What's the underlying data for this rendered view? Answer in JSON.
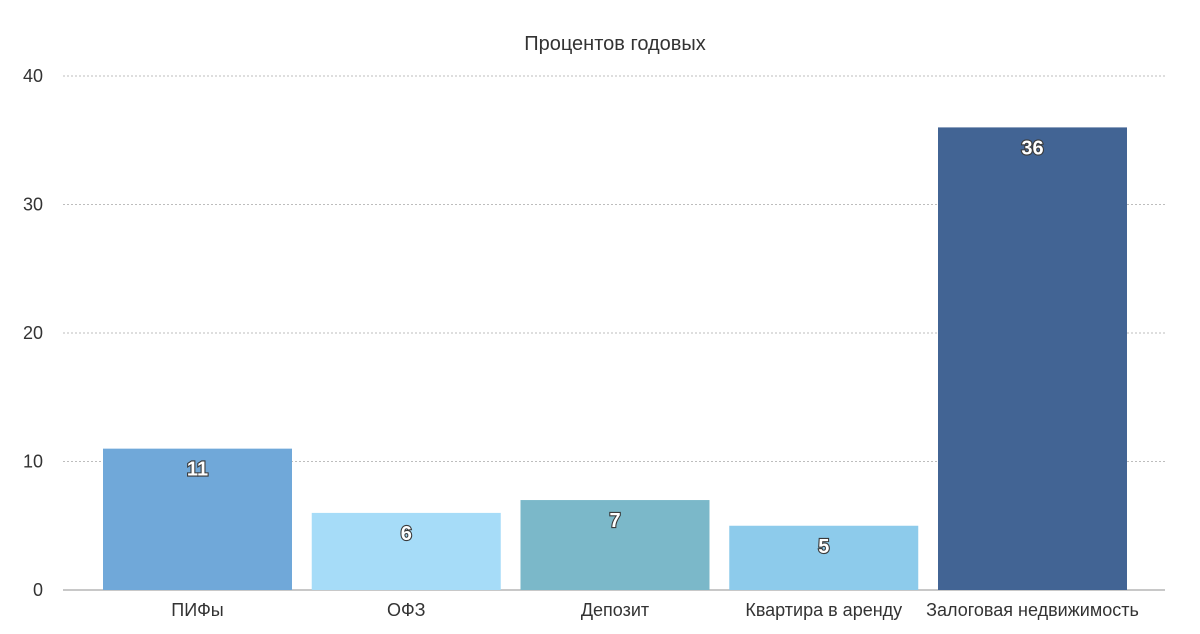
{
  "chart_data": {
    "type": "bar",
    "title": "Процентов годовых",
    "xlabel": "",
    "ylabel": "",
    "ylim": [
      0,
      40
    ],
    "yticks": [
      0,
      10,
      20,
      30,
      40
    ],
    "grid": true,
    "categories": [
      "ПИФы",
      "ОФЗ",
      "Депозит",
      "Квартира в аренду",
      "Залоговая недвижимость"
    ],
    "values": [
      11,
      6,
      7,
      5,
      36
    ],
    "data_labels": [
      "11",
      "6",
      "7",
      "5",
      "36"
    ],
    "colors": [
      "#70a8d9",
      "#a6dcf8",
      "#7bb8c9",
      "#8dcbeb",
      "#426494"
    ]
  }
}
